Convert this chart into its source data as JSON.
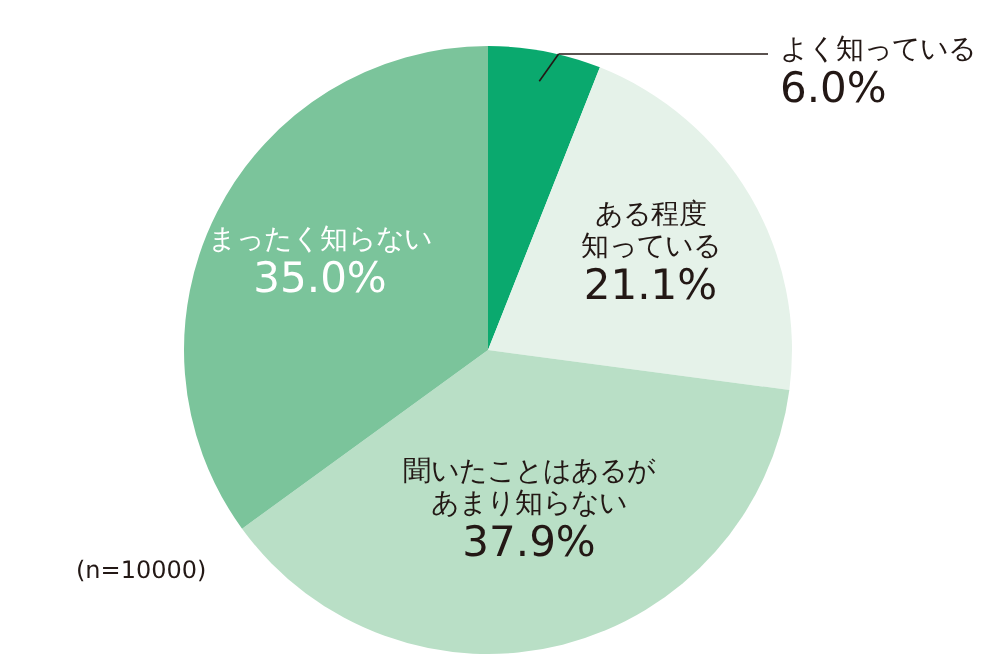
{
  "chart_data": {
    "type": "pie",
    "categories": [
      "よく知っている",
      "ある程度知っている",
      "聞いたことはあるがあまり知らない",
      "まったく知らない"
    ],
    "values": [
      6.0,
      21.1,
      37.9,
      35.0
    ],
    "colors": [
      "#0aa96e",
      "#e5f2e9",
      "#b9dfc6",
      "#7bc49b"
    ],
    "value_labels": [
      "6.0%",
      "21.1%",
      "37.9%",
      "35.0%"
    ],
    "annotations": [
      "(n=10000)"
    ]
  }
}
